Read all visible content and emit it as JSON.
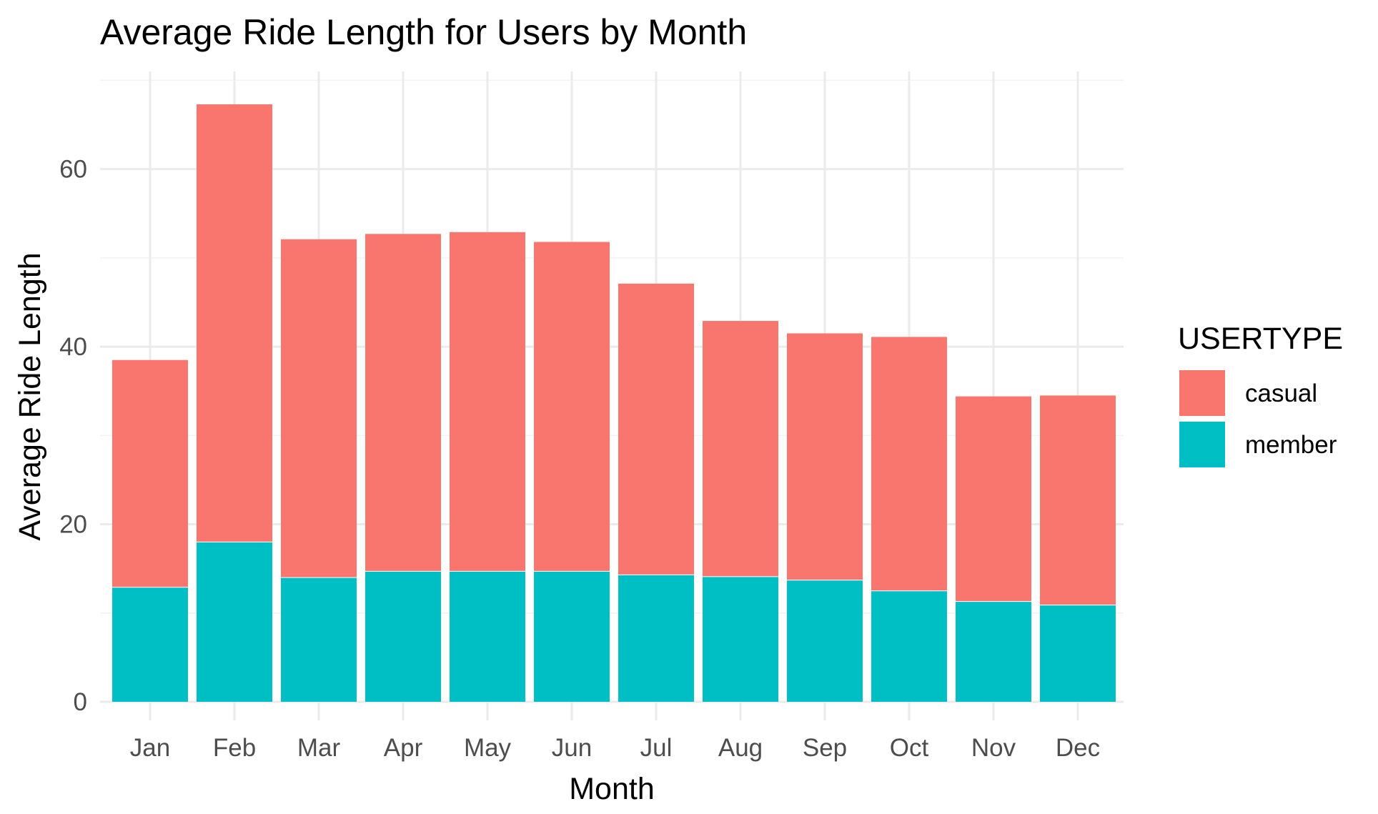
{
  "chart_data": {
    "type": "bar",
    "stacked": true,
    "title": "Average Ride Length for Users by Month",
    "xlabel": "Month",
    "ylabel": "Average Ride Length",
    "categories": [
      "Jan",
      "Feb",
      "Mar",
      "Apr",
      "May",
      "Jun",
      "Jul",
      "Aug",
      "Sep",
      "Oct",
      "Nov",
      "Dec"
    ],
    "series": [
      {
        "name": "member",
        "color": "#00BFC4",
        "values": [
          12.9,
          18.0,
          14.0,
          14.7,
          14.7,
          14.7,
          14.3,
          14.1,
          13.7,
          12.5,
          11.3,
          10.9
        ]
      },
      {
        "name": "casual",
        "color": "#F8766D",
        "values": [
          25.6,
          49.3,
          38.1,
          38.0,
          38.2,
          37.1,
          32.8,
          28.8,
          27.8,
          28.6,
          23.1,
          23.6
        ]
      }
    ],
    "ylim": [
      0,
      71
    ],
    "yticks": [
      0,
      20,
      40,
      60
    ],
    "grid": true,
    "legend": {
      "title": "USERTYPE",
      "position": "right",
      "items": [
        "casual",
        "member"
      ]
    }
  }
}
